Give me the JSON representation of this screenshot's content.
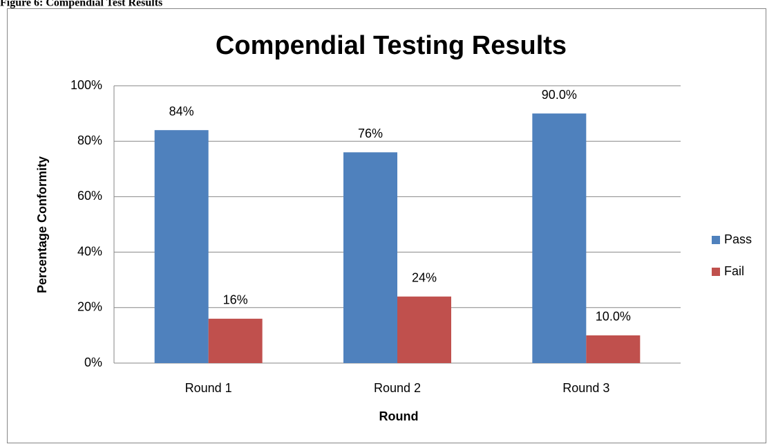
{
  "caption": "Figure 6: Compendial Test Results",
  "chart_data": {
    "type": "bar",
    "title": "Compendial Testing Results",
    "x_label": "Round",
    "y_label": "Percentage Conformity",
    "categories": [
      "Round 1",
      "Round 2",
      "Round 3"
    ],
    "series": [
      {
        "name": "Pass",
        "color": "#4f81bd",
        "values": [
          84,
          76,
          90
        ],
        "value_labels": [
          "84%",
          "76%",
          "90.0%"
        ]
      },
      {
        "name": "Fail",
        "color": "#c0504d",
        "values": [
          16,
          24,
          10
        ],
        "value_labels": [
          "16%",
          "24%",
          "10.0%"
        ]
      }
    ],
    "ylim": [
      0,
      100
    ],
    "yticks": [
      {
        "value": 0,
        "label": "0%"
      },
      {
        "value": 20,
        "label": "20%"
      },
      {
        "value": 40,
        "label": "40%"
      },
      {
        "value": 60,
        "label": "60%"
      },
      {
        "value": 80,
        "label": "80%"
      },
      {
        "value": 100,
        "label": "100%"
      }
    ],
    "grid": true,
    "legend": "right"
  }
}
